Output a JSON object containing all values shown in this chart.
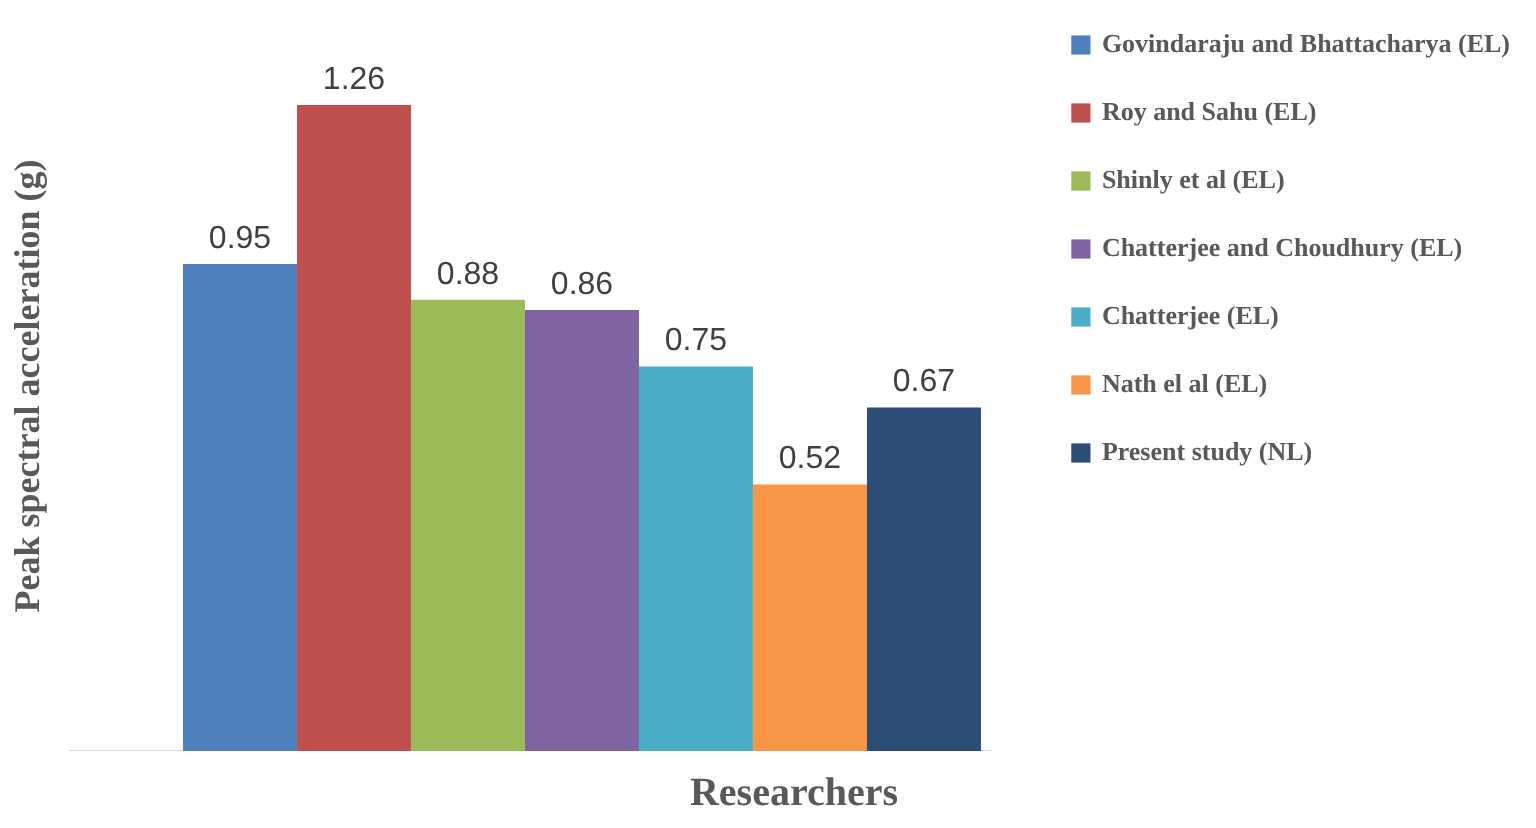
{
  "chart_data": {
    "type": "bar",
    "xlabel": "Researchers",
    "ylabel": "Peak spectral acceleration (g)",
    "categories": [
      null
    ],
    "data_labels": true,
    "legend": "right",
    "series": [
      {
        "name": "Govindaraju and Bhattacharya (EL)",
        "color": "#4f81bd",
        "values": [
          0.95
        ]
      },
      {
        "name": "Roy and Sahu (EL)",
        "color": "#c0504d",
        "values": [
          1.26
        ]
      },
      {
        "name": "Shinly et al (EL)",
        "color": "#9bbb59",
        "values": [
          0.88
        ]
      },
      {
        "name": "Chatterjee and Choudhury (EL)",
        "color": "#8064a2",
        "values": [
          0.86
        ]
      },
      {
        "name": "Chatterjee (EL)",
        "color": "#4bacc6",
        "values": [
          0.75
        ]
      },
      {
        "name": "Nath el al (EL)",
        "color": "#f79646",
        "values": [
          0.52
        ]
      },
      {
        "name": "Present study (NL)",
        "color": "#2c4d75",
        "values": [
          0.67
        ]
      }
    ]
  }
}
